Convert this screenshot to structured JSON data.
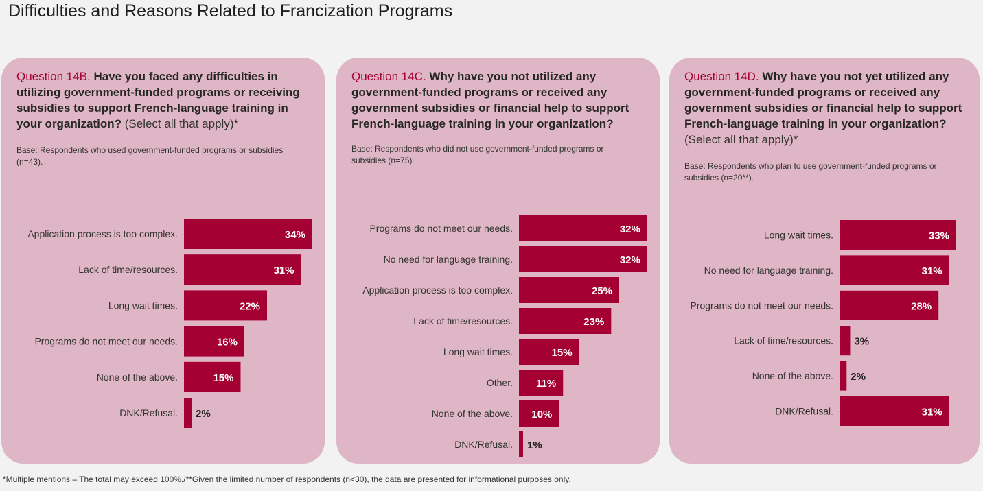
{
  "page_title": "Difficulties and Reasons Related to Francization Programs",
  "colors": {
    "bar": "#a50034",
    "panel": "#dfb6c5",
    "accent_text": "#a50034"
  },
  "footnote": "*Multiple mentions – The total may exceed 100%./**Given the limited number of respondents (n<30), the data are presented for informational purposes only.",
  "panels": [
    {
      "question_id": "Question 14B.",
      "question_text": "Have you faced any difficulties in utilizing government-funded programs or receiving subsidies to support French-language training in your organization?",
      "question_note": "(Select all that apply)*",
      "base": "Base: Respondents who used government-funded programs or subsidies (n=43)."
    },
    {
      "question_id": "Question 14C.",
      "question_text": "Why have you not utilized any government-funded programs or received any government subsidies or financial help to support French-language training in your organization?",
      "question_note": "",
      "base": "Base: Respondents who did not use government-funded programs or subsidies (n=75)."
    },
    {
      "question_id": "Question 14D.",
      "question_text": "Why have you not yet utilized any government-funded programs or received any government subsidies or financial help to support French-language training in your organization?",
      "question_note": "(Select all that apply)*",
      "base": "Base: Respondents who plan to use government-funded programs or subsidies (n=20**)."
    }
  ],
  "chart_data": [
    {
      "type": "bar",
      "orientation": "horizontal",
      "categories": [
        "Application process is too complex.",
        "Lack of time/resources.",
        "Long wait times.",
        "Programs do not meet our needs.",
        "None of the above.",
        "DNK/Refusal."
      ],
      "values": [
        34,
        31,
        22,
        16,
        15,
        2
      ],
      "labels": [
        "34%",
        "31%",
        "22%",
        "16%",
        "15%",
        "2%"
      ],
      "unit": "%"
    },
    {
      "type": "bar",
      "orientation": "horizontal",
      "categories": [
        "Programs do not meet our needs.",
        "No need for language training.",
        "Application process is too complex.",
        "Lack of time/resources.",
        "Long wait times.",
        "Other.",
        "None of the above.",
        "DNK/Refusal."
      ],
      "values": [
        32,
        32,
        25,
        23,
        15,
        11,
        10,
        1
      ],
      "labels": [
        "32%",
        "32%",
        "25%",
        "23%",
        "15%",
        "11%",
        "10%",
        "1%"
      ],
      "unit": "%"
    },
    {
      "type": "bar",
      "orientation": "horizontal",
      "categories": [
        "Long wait times.",
        "No need for language training.",
        "Programs do not meet our needs.",
        "Lack of time/resources.",
        "None of the above.",
        "DNK/Refusal."
      ],
      "values": [
        33,
        31,
        28,
        3,
        2,
        31
      ],
      "labels": [
        "33%",
        "31%",
        "28%",
        "3%",
        "2%",
        "31%"
      ],
      "unit": "%"
    }
  ]
}
